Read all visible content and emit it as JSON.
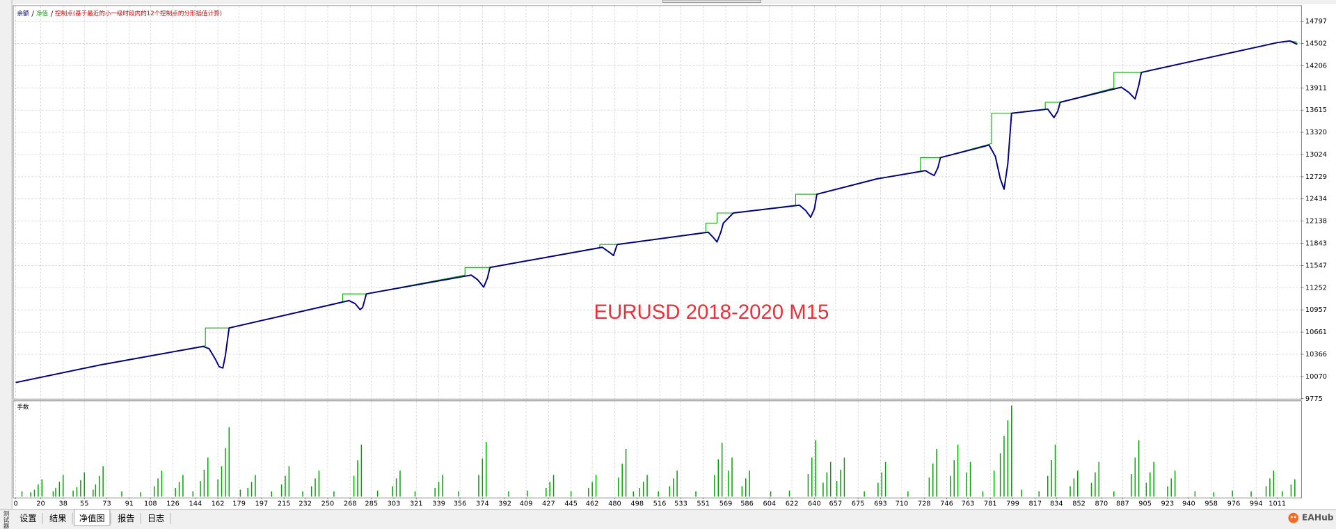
{
  "chart_data": [
    {
      "type": "line",
      "legend_note": "控制点(基于最近的小一级时段内的12个控制点的分形插值计算)",
      "annotation": "EURUSD 2018-2020 M15",
      "series": [
        {
          "name": "余额",
          "color": "#00007f",
          "x": [
            0,
            69,
            150,
            155,
            160,
            163,
            166,
            168,
            171,
            267,
            272,
            276,
            278,
            281,
            365,
            370,
            375,
            378,
            380,
            470,
            476,
            479,
            482,
            555,
            559,
            562,
            565,
            567,
            575,
            628,
            633,
            637,
            640,
            642,
            690,
            729,
            733,
            736,
            739,
            741,
            780,
            785,
            789,
            792,
            795,
            798,
            827,
            830,
            832,
            835,
            837,
            886,
            892,
            897,
            900,
            902,
            1011,
            1021,
            1027
          ],
          "values": [
            9990,
            10228,
            10470,
            10440,
            10300,
            10200,
            10183,
            10350,
            10716,
            11080,
            11040,
            10960,
            10990,
            11170,
            11420,
            11360,
            11260,
            11380,
            11521,
            11790,
            11720,
            11680,
            11827,
            11990,
            11920,
            11861,
            11990,
            12110,
            12246,
            12350,
            12280,
            12190,
            12300,
            12496,
            12700,
            12810,
            12770,
            12745,
            12850,
            12983,
            13150,
            13000,
            12700,
            12563,
            12900,
            13573,
            13629,
            13560,
            13516,
            13600,
            13720,
            13920,
            13850,
            13765,
            13950,
            14117,
            14514,
            14536,
            14491
          ]
        },
        {
          "name": "净值",
          "color": "#00b000",
          "x": [
            0,
            69,
            152,
            152,
            171,
            262,
            262,
            281,
            360,
            360,
            380,
            468,
            468,
            482,
            553,
            553,
            562,
            562,
            575,
            625,
            625,
            642,
            690,
            725,
            725,
            741,
            782,
            782,
            798,
            825,
            825,
            837,
            880,
            880,
            902,
            1011,
            1021,
            1027
          ],
          "values": [
            9990,
            10228,
            10480,
            10716,
            10716,
            11060,
            11170,
            11170,
            11420,
            11521,
            11521,
            11780,
            11827,
            11827,
            11990,
            12110,
            12110,
            12246,
            12246,
            12350,
            12496,
            12496,
            12700,
            12800,
            12983,
            12983,
            13170,
            13573,
            13573,
            13620,
            13720,
            13720,
            13910,
            14117,
            14117,
            14514,
            14536,
            14520
          ]
        }
      ],
      "xlim": [
        -1,
        1030
      ],
      "ylim": [
        9775,
        14990
      ],
      "xticks": [
        0,
        20,
        38,
        55,
        73,
        91,
        108,
        126,
        144,
        162,
        179,
        197,
        215,
        232,
        250,
        268,
        285,
        303,
        321,
        339,
        356,
        374,
        392,
        409,
        427,
        445,
        462,
        480,
        498,
        516,
        533,
        551,
        569,
        586,
        604,
        622,
        640,
        657,
        675,
        693,
        710,
        728,
        746,
        763,
        781,
        799,
        817,
        834,
        852,
        870,
        887,
        905,
        923,
        940,
        958,
        976,
        994,
        1011
      ],
      "yticks": [
        9775,
        10070,
        10366,
        10661,
        10957,
        11252,
        11547,
        11843,
        12138,
        12434,
        12729,
        13024,
        13320,
        13615,
        13911,
        14206,
        14502,
        14797
      ],
      "grid": true
    },
    {
      "type": "bar",
      "title": "手数",
      "color": "#00a000",
      "x": [
        5,
        12,
        15,
        18,
        21,
        30,
        32,
        35,
        38,
        46,
        49,
        52,
        55,
        62,
        64,
        67,
        70,
        85,
        100,
        111,
        114,
        117,
        128,
        131,
        134,
        142,
        148,
        151,
        154,
        162,
        165,
        168,
        171,
        180,
        186,
        189,
        192,
        205,
        213,
        216,
        219,
        230,
        237,
        240,
        243,
        255,
        271,
        274,
        277,
        290,
        302,
        305,
        308,
        320,
        336,
        339,
        342,
        355,
        371,
        374,
        377,
        395,
        410,
        425,
        428,
        431,
        445,
        459,
        462,
        465,
        483,
        486,
        489,
        495,
        500,
        503,
        506,
        515,
        524,
        527,
        530,
        545,
        560,
        563,
        566,
        571,
        574,
        582,
        585,
        588,
        605,
        620,
        635,
        638,
        641,
        647,
        650,
        653,
        658,
        661,
        664,
        680,
        691,
        694,
        697,
        715,
        732,
        735,
        738,
        749,
        752,
        755,
        762,
        765,
        775,
        784,
        789,
        792,
        795,
        798,
        806,
        820,
        827,
        830,
        833,
        845,
        848,
        851,
        862,
        865,
        868,
        880,
        894,
        897,
        900,
        906,
        909,
        912,
        923,
        926,
        929,
        945,
        960,
        975,
        990,
        1002,
        1005,
        1008,
        1015,
        1022,
        1025
      ],
      "values": [
        0.06,
        0.05,
        0.08,
        0.14,
        0.2,
        0.06,
        0.1,
        0.17,
        0.25,
        0.07,
        0.11,
        0.19,
        0.28,
        0.08,
        0.14,
        0.24,
        0.35,
        0.06,
        0.05,
        0.12,
        0.21,
        0.3,
        0.1,
        0.17,
        0.25,
        0.06,
        0.18,
        0.31,
        0.45,
        0.2,
        0.35,
        0.56,
        0.8,
        0.08,
        0.1,
        0.17,
        0.25,
        0.06,
        0.14,
        0.24,
        0.35,
        0.06,
        0.12,
        0.21,
        0.3,
        0.06,
        0.24,
        0.42,
        0.6,
        0.07,
        0.12,
        0.21,
        0.3,
        0.06,
        0.1,
        0.17,
        0.25,
        0.06,
        0.25,
        0.44,
        0.63,
        0.06,
        0.07,
        0.1,
        0.17,
        0.25,
        0.06,
        0.1,
        0.17,
        0.25,
        0.22,
        0.38,
        0.55,
        0.06,
        0.1,
        0.17,
        0.25,
        0.06,
        0.12,
        0.21,
        0.3,
        0.06,
        0.25,
        0.43,
        0.62,
        0.3,
        0.45,
        0.12,
        0.21,
        0.3,
        0.06,
        0.07,
        0.26,
        0.45,
        0.65,
        0.16,
        0.28,
        0.4,
        0.18,
        0.31,
        0.45,
        0.06,
        0.16,
        0.28,
        0.4,
        0.06,
        0.22,
        0.38,
        0.55,
        0.24,
        0.42,
        0.6,
        0.28,
        0.4,
        0.06,
        0.3,
        0.5,
        0.7,
        0.88,
        1.05,
        0.08,
        0.06,
        0.24,
        0.42,
        0.6,
        0.12,
        0.21,
        0.3,
        0.16,
        0.28,
        0.4,
        0.06,
        0.26,
        0.45,
        0.65,
        0.16,
        0.28,
        0.4,
        0.12,
        0.21,
        0.3,
        0.06,
        0.05,
        0.07,
        0.06,
        0.12,
        0.21,
        0.3,
        0.06,
        0.14,
        0.2
      ],
      "ylim": [
        0,
        1.08
      ],
      "grid": true
    }
  ],
  "tabs": [
    "设置",
    "结果",
    "净值图",
    "报告",
    "日志"
  ],
  "active_tab": 2,
  "side_label": "测试器",
  "logo": "EAHub"
}
